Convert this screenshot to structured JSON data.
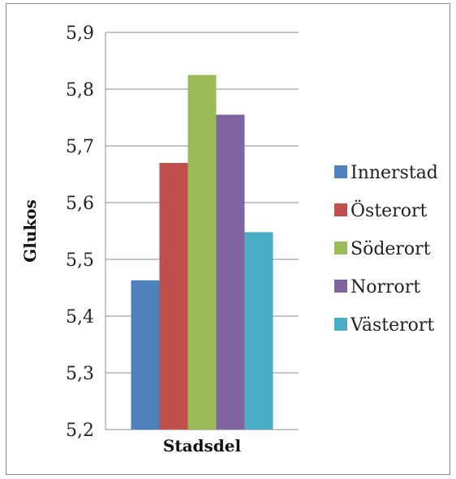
{
  "chart_data": {
    "type": "bar",
    "categories": [
      "Stadsdel"
    ],
    "series": [
      {
        "name": "Innerstad",
        "values": [
          5.463
        ],
        "color": "#4F81BD"
      },
      {
        "name": "Österort",
        "values": [
          5.67
        ],
        "color": "#C0504D"
      },
      {
        "name": "Söderort",
        "values": [
          5.825
        ],
        "color": "#9BBB59"
      },
      {
        "name": "Norrort",
        "values": [
          5.755
        ],
        "color": "#8064A2"
      },
      {
        "name": "Västerort",
        "values": [
          5.548
        ],
        "color": "#4BACC6"
      }
    ],
    "xlabel": "Stadsdel",
    "ylabel": "Glukos",
    "ylim": [
      5.2,
      5.9
    ],
    "yticks": [
      "5,2",
      "5,3",
      "5,4",
      "5,5",
      "5,6",
      "5,7",
      "5,8",
      "5,9"
    ],
    "grid": true,
    "legend": "right",
    "gridline_color": "#8c8c8c"
  }
}
